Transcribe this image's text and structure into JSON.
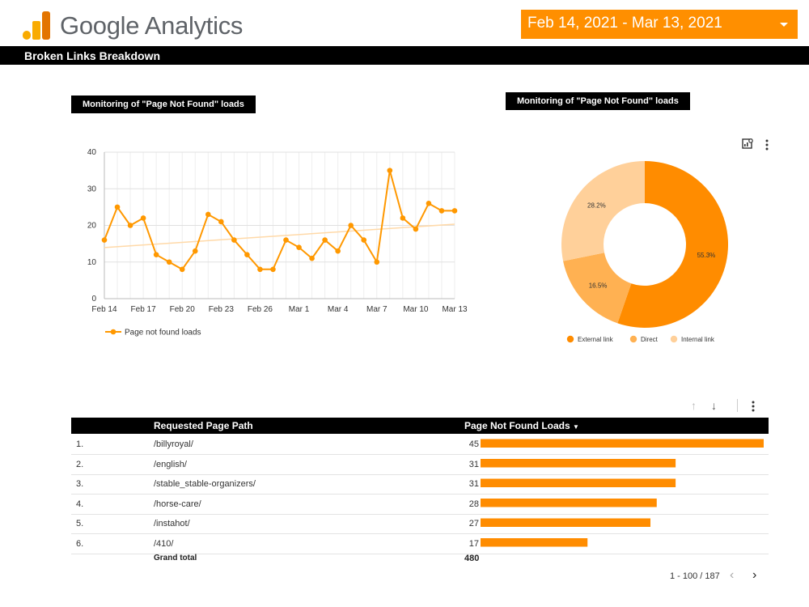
{
  "header": {
    "logo_text": "Google Analytics",
    "date_range": "Feb 14, 2021 - Mar 13, 2021",
    "report_title": "Broken Links Breakdown"
  },
  "colors": {
    "accent": "#ff8f00",
    "line": "#ff9800",
    "trend": "#ffd9a8",
    "slice_external": "#ff8c00",
    "slice_direct": "#ffb152",
    "slice_internal": "#ffd09a",
    "bar": "#ff8c00"
  },
  "line_section": {
    "title": "Monitoring of \"Page Not Found\" loads"
  },
  "donut_section": {
    "title": "Monitoring of \"Page Not Found\" loads"
  },
  "chart_data": [
    {
      "type": "line",
      "title": "",
      "xlabel": "",
      "ylabel": "",
      "ylim": [
        0,
        40
      ],
      "y_ticks": [
        0,
        10,
        20,
        30,
        40
      ],
      "x_tick_labels": [
        "Feb 14",
        "Feb 17",
        "Feb 20",
        "Feb 23",
        "Feb 26",
        "Mar 1",
        "Mar 4",
        "Mar 7",
        "Mar 10",
        "Mar 13"
      ],
      "x_tick_every": 3,
      "grid": true,
      "legend": "bottom-left",
      "trendline": true,
      "series": [
        {
          "name": "Page not found loads",
          "values": [
            16,
            25,
            20,
            22,
            12,
            10,
            8,
            13,
            23,
            21,
            16,
            12,
            8,
            8,
            16,
            14,
            11,
            16,
            13,
            20,
            16,
            10,
            35,
            22,
            19,
            26,
            24,
            24
          ]
        }
      ]
    },
    {
      "type": "pie",
      "donut": true,
      "labels": [
        "External link",
        "Direct",
        "Internal link"
      ],
      "values": [
        55.3,
        16.5,
        28.2
      ],
      "value_labels": [
        "55.3%",
        "16.5%",
        "28.2%"
      ],
      "legend": "bottom"
    },
    {
      "type": "table",
      "columns": [
        "Requested Page Path",
        "Page Not Found Loads"
      ],
      "rows": [
        {
          "index": "1.",
          "path": "/billyroyal/",
          "loads": 45
        },
        {
          "index": "2.",
          "path": "/english/",
          "loads": 31
        },
        {
          "index": "3.",
          "path": "/stable_stable-organizers/",
          "loads": 31
        },
        {
          "index": "4.",
          "path": "/horse-care/",
          "loads": 28
        },
        {
          "index": "5.",
          "path": "/instahot/",
          "loads": 27
        },
        {
          "index": "6.",
          "path": "/410/",
          "loads": 17
        }
      ],
      "bar_max": 45,
      "grand_total_label": "Grand total",
      "grand_total": "480"
    }
  ],
  "table": {
    "col_path": "Requested Page Path",
    "col_loads": "Page Not Found Loads",
    "sort_icon": "caret-down-icon",
    "grand_total_label": "Grand total",
    "grand_total": "480",
    "pager": "1 - 100 / 187",
    "controls": [
      "arrow-up-icon",
      "arrow-down-icon",
      "more-vert-icon"
    ]
  },
  "chart_controls": [
    "explore-chart-icon",
    "more-vert-icon"
  ]
}
